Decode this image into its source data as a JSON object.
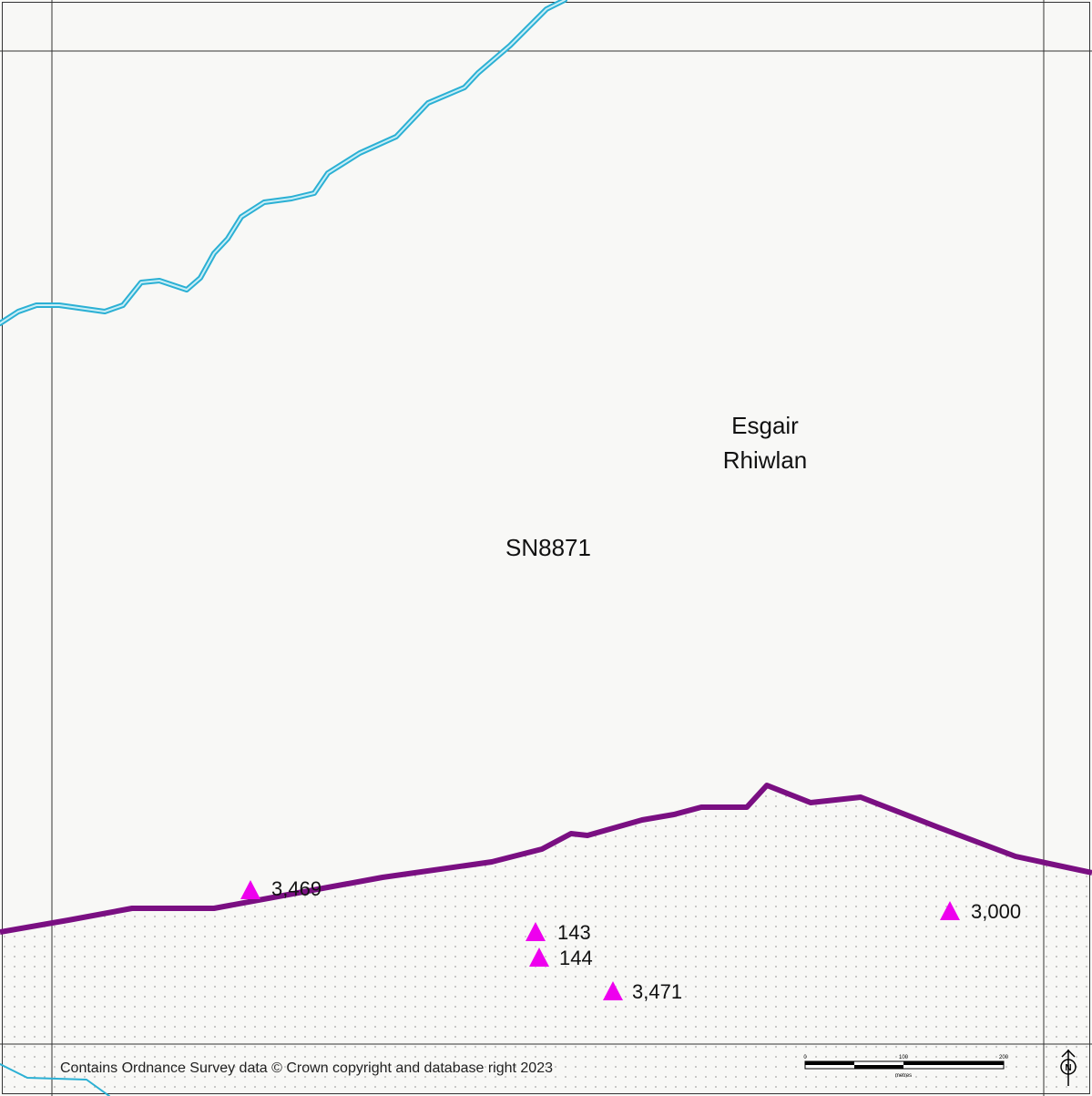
{
  "place_name": [
    "Esgair",
    "Rhiwlan"
  ],
  "grid_reference": "SN8871",
  "spot_heights": [
    "3,469",
    "143",
    "144",
    "3,471",
    "3,000"
  ],
  "copyright": "Contains Ordnance Survey data © Crown copyright and database right 2023",
  "scale_bar": {
    "ticks": [
      "0",
      "100",
      "200"
    ],
    "unit": "metres"
  },
  "north": "N"
}
